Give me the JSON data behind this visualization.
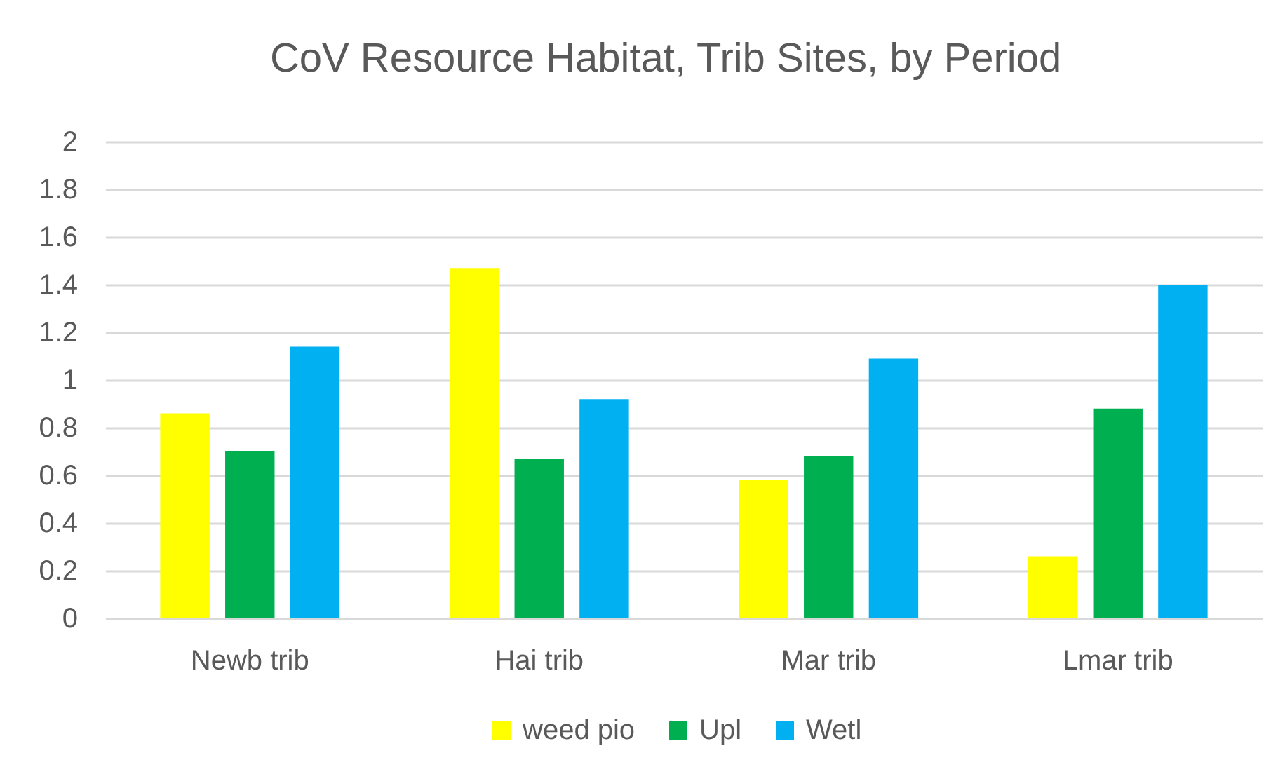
{
  "chart_data": {
    "type": "bar",
    "title": "CoV Resource Habitat, Trib Sites, by Period",
    "categories": [
      "Newb trib",
      "Hai trib",
      "Mar trib",
      "Lmar trib"
    ],
    "series": [
      {
        "name": "weed pio",
        "color": "#ffff00",
        "values": [
          0.86,
          1.47,
          0.58,
          0.26
        ]
      },
      {
        "name": "Upl",
        "color": "#00b050",
        "values": [
          0.7,
          0.67,
          0.68,
          0.88
        ]
      },
      {
        "name": "Wetl",
        "color": "#00b0f0",
        "values": [
          1.14,
          0.92,
          1.09,
          1.4
        ]
      }
    ],
    "ylim": [
      0,
      2
    ],
    "yticks": [
      0,
      0.2,
      0.4,
      0.6,
      0.8,
      1,
      1.2,
      1.4,
      1.6,
      1.8,
      2
    ],
    "grid": "y",
    "legend": "bottom"
  }
}
